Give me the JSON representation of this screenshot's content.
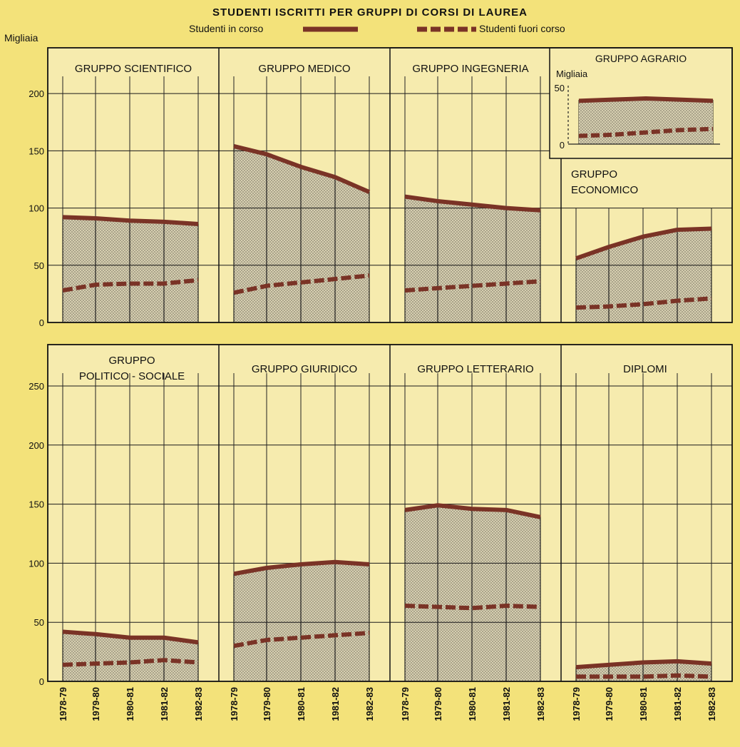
{
  "title": "STUDENTI ISCRITTI PER GRUPPI DI CORSI DI LAUREA",
  "legend": {
    "in_corso": "Studenti in corso",
    "fuori_corso": "Studenti fuori corso"
  },
  "units_label": "Migliaia",
  "colors": {
    "in_corso": "#7a3326",
    "fuori_corso": "#7a3326",
    "panel_bg": "#f6ebae",
    "fill": "#cdc6a8",
    "grid": "#1a1a1a",
    "page_bg": "#f3e27a"
  },
  "chart_data": [
    {
      "type": "line",
      "title": "GRUPPO SCIENTIFICO",
      "x": [
        "1978-79",
        "1979-80",
        "1980-81",
        "1981-82",
        "1982-83"
      ],
      "series": [
        {
          "name": "Studenti in corso",
          "values": [
            92,
            91,
            89,
            88,
            86
          ]
        },
        {
          "name": "Studenti fuori corso",
          "values": [
            28,
            33,
            34,
            34,
            37
          ]
        }
      ],
      "ylabel": "Migliaia",
      "ylim": [
        0,
        240
      ]
    },
    {
      "type": "line",
      "title": "GRUPPO MEDICO",
      "x": [
        "1978-79",
        "1979-80",
        "1980-81",
        "1981-82",
        "1982-83"
      ],
      "series": [
        {
          "name": "Studenti in corso",
          "values": [
            154,
            147,
            136,
            127,
            114
          ]
        },
        {
          "name": "Studenti fuori corso",
          "values": [
            26,
            32,
            35,
            38,
            41
          ]
        }
      ],
      "ylabel": "Migliaia",
      "ylim": [
        0,
        240
      ]
    },
    {
      "type": "line",
      "title": "GRUPPO INGEGNERIA",
      "x": [
        "1978-79",
        "1979-80",
        "1980-81",
        "1981-82",
        "1982-83"
      ],
      "series": [
        {
          "name": "Studenti in corso",
          "values": [
            110,
            106,
            103,
            100,
            98
          ]
        },
        {
          "name": "Studenti fuori corso",
          "values": [
            28,
            30,
            32,
            34,
            36
          ]
        }
      ],
      "ylabel": "Migliaia",
      "ylim": [
        0,
        240
      ]
    },
    {
      "type": "line",
      "title": "GRUPPO AGRARIO",
      "x": [
        "1978-79",
        "1979-80",
        "1980-81",
        "1981-82",
        "1982-83"
      ],
      "series": [
        {
          "name": "Studenti in corso",
          "values": [
            37,
            38,
            39,
            38,
            37
          ]
        },
        {
          "name": "Studenti fuori corso",
          "values": [
            7,
            8,
            10,
            12,
            13
          ]
        }
      ],
      "ylabel": "Migliaia",
      "yticks": [
        0,
        50
      ],
      "ylim": [
        0,
        55
      ]
    },
    {
      "type": "line",
      "title": "GRUPPO ECONOMICO",
      "x": [
        "1978-79",
        "1979-80",
        "1980-81",
        "1981-82",
        "1982-83"
      ],
      "series": [
        {
          "name": "Studenti in corso",
          "values": [
            56,
            66,
            75,
            81,
            82
          ]
        },
        {
          "name": "Studenti fuori corso",
          "values": [
            13,
            14,
            16,
            19,
            21
          ]
        }
      ],
      "ylabel": "Migliaia",
      "ylim": [
        0,
        240
      ]
    },
    {
      "type": "line",
      "title": "GRUPPO POLITICO - SOCIALE",
      "x": [
        "1978-79",
        "1979-80",
        "1980-81",
        "1981-82",
        "1982-83"
      ],
      "series": [
        {
          "name": "Studenti in corso",
          "values": [
            42,
            40,
            37,
            37,
            33
          ]
        },
        {
          "name": "Studenti fuori corso",
          "values": [
            14,
            15,
            16,
            18,
            16
          ]
        }
      ],
      "ylabel": "Migliaia",
      "ylim": [
        0,
        285
      ]
    },
    {
      "type": "line",
      "title": "GRUPPO GIURIDICO",
      "x": [
        "1978-79",
        "1979-80",
        "1980-81",
        "1981-82",
        "1982-83"
      ],
      "series": [
        {
          "name": "Studenti in corso",
          "values": [
            91,
            96,
            99,
            101,
            99
          ]
        },
        {
          "name": "Studenti fuori corso",
          "values": [
            30,
            35,
            37,
            39,
            41
          ]
        }
      ],
      "ylabel": "Migliaia",
      "ylim": [
        0,
        285
      ]
    },
    {
      "type": "line",
      "title": "GRUPPO LETTERARIO",
      "x": [
        "1978-79",
        "1979-80",
        "1980-81",
        "1981-82",
        "1982-83"
      ],
      "series": [
        {
          "name": "Studenti in corso",
          "values": [
            145,
            149,
            146,
            145,
            139
          ]
        },
        {
          "name": "Studenti fuori corso",
          "values": [
            64,
            63,
            62,
            64,
            63
          ]
        }
      ],
      "ylabel": "Migliaia",
      "ylim": [
        0,
        285
      ]
    },
    {
      "type": "line",
      "title": "DIPLOMI",
      "x": [
        "1978-79",
        "1979-80",
        "1980-81",
        "1981-82",
        "1982-83"
      ],
      "series": [
        {
          "name": "Studenti in corso",
          "values": [
            12,
            14,
            16,
            17,
            15
          ]
        },
        {
          "name": "Studenti fuori corso",
          "values": [
            4,
            4,
            4,
            5,
            4
          ]
        }
      ],
      "ylabel": "Migliaia",
      "ylim": [
        0,
        285
      ]
    }
  ],
  "y_axis_top": {
    "ticks": [
      0,
      50,
      100,
      150,
      200
    ],
    "ylim": [
      0,
      240
    ]
  },
  "y_axis_bottom": {
    "ticks": [
      0,
      50,
      100,
      150,
      200,
      250
    ],
    "ylim": [
      0,
      285
    ]
  }
}
